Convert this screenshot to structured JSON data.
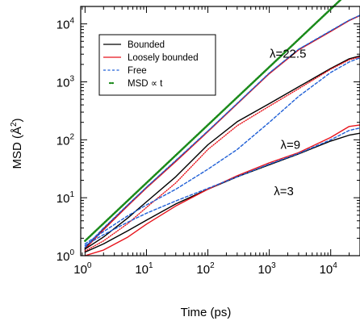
{
  "chart_data": {
    "type": "line",
    "title": "",
    "xlabel": "Time (ps)",
    "ylabel_main": "MSD (Å",
    "ylabel_sup": "2",
    "ylabel_close": ")",
    "xscale": "log",
    "yscale": "log",
    "xlim": [
      0.85,
      30000
    ],
    "ylim": [
      1,
      20000
    ],
    "x_ticks": [
      {
        "value": 1,
        "base": "10",
        "exp": "0"
      },
      {
        "value": 10,
        "base": "10",
        "exp": "1"
      },
      {
        "value": 100,
        "base": "10",
        "exp": "2"
      },
      {
        "value": 1000,
        "base": "10",
        "exp": "3"
      },
      {
        "value": 10000,
        "base": "10",
        "exp": "4"
      }
    ],
    "y_ticks": [
      {
        "value": 1,
        "base": "10",
        "exp": "0"
      },
      {
        "value": 10,
        "base": "10",
        "exp": "1"
      },
      {
        "value": 100,
        "base": "10",
        "exp": "2"
      },
      {
        "value": 1000,
        "base": "10",
        "exp": "3"
      },
      {
        "value": 10000,
        "base": "10",
        "exp": "4"
      }
    ],
    "legend": {
      "position": "top-left",
      "entries": [
        {
          "label": "Bounded",
          "style": "solid",
          "color": "#000000"
        },
        {
          "label": "Loosely bounded",
          "style": "solid",
          "color": "#e8141c"
        },
        {
          "label": "Free",
          "style": "dashed",
          "color": "#1f5fd6"
        },
        {
          "label": "MSD ∝ t",
          "style": "dotted",
          "color": "#1a8a1a"
        }
      ]
    },
    "annotations": [
      {
        "text": "λ=22.5",
        "x": 4000,
        "y": 2600
      },
      {
        "text": "λ=9",
        "x": 3200,
        "y": 70
      },
      {
        "text": "λ=3",
        "x": 2500,
        "y": 11
      }
    ],
    "series": [
      {
        "group": "λ=22.5",
        "style": "solid",
        "color": "#000000",
        "x": [
          1,
          2,
          5,
          10,
          30,
          100,
          300,
          1000,
          3000,
          10000,
          20000,
          30000
        ],
        "y": [
          1.35,
          2.9,
          7.5,
          15,
          43,
          140,
          420,
          1400,
          3600,
          7500,
          11500,
          14000
        ]
      },
      {
        "group": "λ=22.5",
        "style": "solid",
        "color": "#e8141c",
        "x": [
          1,
          2,
          5,
          10,
          30,
          100,
          300,
          1000,
          3000,
          10000,
          20000,
          30000
        ],
        "y": [
          1.3,
          2.8,
          7.3,
          14.7,
          42,
          138,
          415,
          1380,
          3550,
          7400,
          11400,
          13900
        ]
      },
      {
        "group": "λ=22.5",
        "style": "dashed",
        "color": "#1f5fd6",
        "x": [
          1,
          2,
          5,
          10,
          30,
          100,
          300,
          1000,
          3000,
          10000,
          20000,
          30000
        ],
        "y": [
          1.4,
          3.0,
          7.6,
          15.2,
          44,
          142,
          425,
          1420,
          3650,
          7600,
          11600,
          14100
        ]
      },
      {
        "group": "λ=9",
        "style": "solid",
        "color": "#000000",
        "x": [
          1,
          2,
          5,
          10,
          30,
          100,
          300,
          1000,
          3000,
          10000,
          20000,
          30000
        ],
        "y": [
          1.3,
          2.1,
          4.5,
          8.5,
          23,
          82,
          205,
          420,
          820,
          1700,
          2500,
          2800
        ]
      },
      {
        "group": "λ=9",
        "style": "dotted",
        "color": "#e8141c",
        "x": [
          1,
          2,
          5,
          10,
          30,
          100,
          300,
          1000,
          3000,
          10000,
          20000,
          30000
        ],
        "y": [
          1.2,
          1.8,
          3.6,
          6.8,
          18,
          68,
          175,
          380,
          760,
          1650,
          2400,
          2700
        ]
      },
      {
        "group": "λ=9",
        "style": "dashed",
        "color": "#1f5fd6",
        "x": [
          1,
          2,
          5,
          10,
          30,
          100,
          300,
          1000,
          3000,
          10000,
          20000,
          30000
        ],
        "y": [
          1.6,
          2.6,
          4.9,
          7.5,
          14,
          31,
          68,
          200,
          560,
          1450,
          2200,
          2600
        ]
      },
      {
        "group": "λ=3",
        "style": "solid",
        "color": "#000000",
        "x": [
          1,
          2,
          5,
          10,
          30,
          100,
          300,
          1000,
          3000,
          10000,
          20000,
          30000
        ],
        "y": [
          1.15,
          1.6,
          2.7,
          4.1,
          7.8,
          14,
          23,
          37,
          57,
          95,
          120,
          130
        ]
      },
      {
        "group": "λ=3",
        "style": "solid",
        "color": "#e8141c",
        "x": [
          1,
          2,
          5,
          10,
          30,
          100,
          300,
          1000,
          3000,
          10000,
          20000,
          30000
        ],
        "y": [
          1.0,
          1.25,
          2.1,
          3.5,
          7.2,
          14,
          24,
          40,
          60,
          110,
          170,
          180
        ]
      },
      {
        "group": "λ=3",
        "style": "dashed",
        "color": "#1f5fd6",
        "x": [
          1,
          2,
          5,
          10,
          30,
          100,
          300,
          1000,
          3000,
          10000,
          20000,
          30000
        ],
        "y": [
          1.5,
          2.3,
          3.8,
          5.4,
          8.8,
          14.5,
          23,
          38,
          58,
          100,
          145,
          160
        ]
      },
      {
        "group": "MSD ∝ t",
        "style": "dotted",
        "color": "#1a8a1a",
        "x": [
          1,
          30000
        ],
        "y": [
          1.8,
          54000
        ]
      }
    ]
  }
}
